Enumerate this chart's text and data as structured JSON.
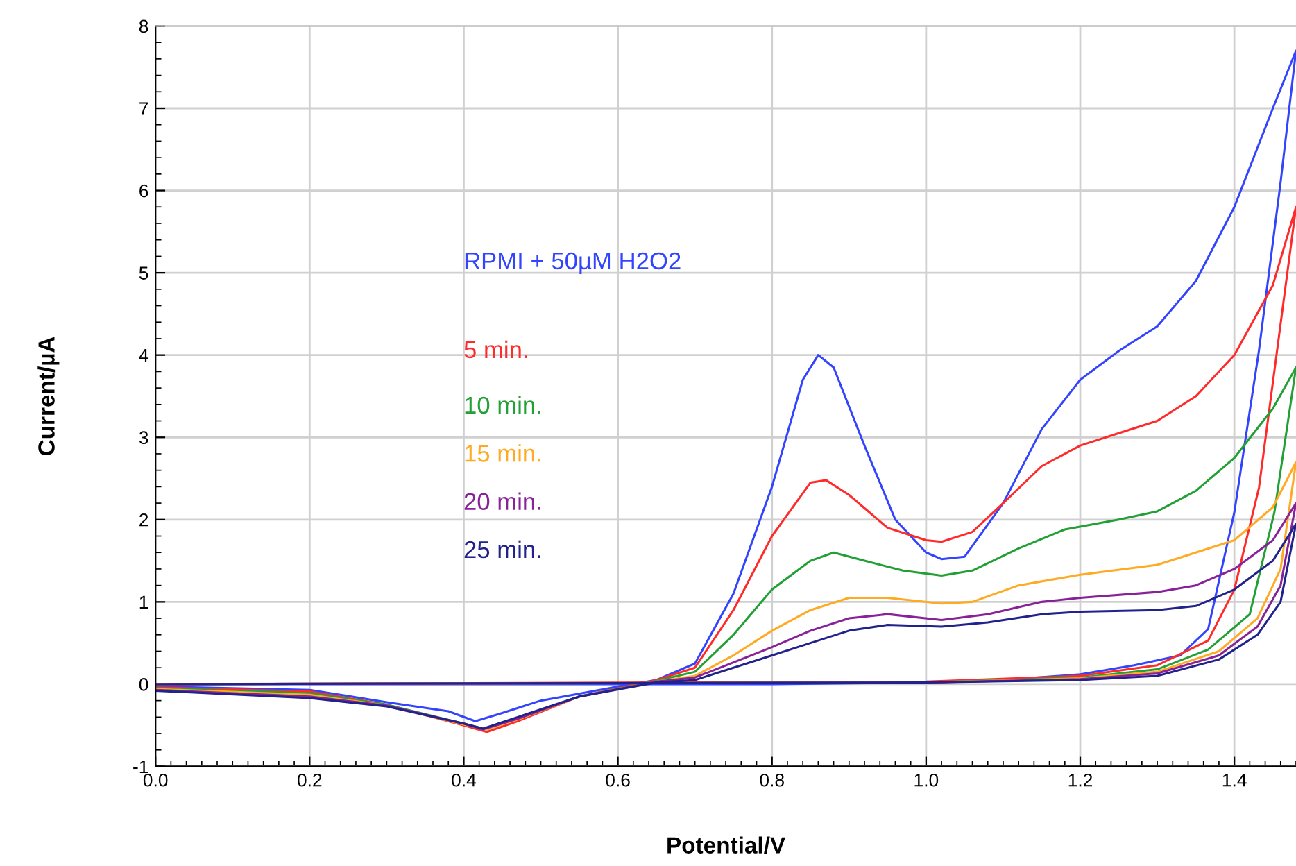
{
  "chart_data": {
    "type": "line",
    "xlabel": "Potential/V",
    "ylabel": "Current/µA",
    "xlim": [
      0,
      1.48
    ],
    "ylim": [
      -1,
      8
    ],
    "xticks": [
      {
        "value": 0,
        "label": "0.0"
      },
      {
        "value": 0.2,
        "label": "0.2"
      },
      {
        "value": 0.4,
        "label": "0.4"
      },
      {
        "value": 0.6,
        "label": "0.6"
      },
      {
        "value": 0.8,
        "label": "0.8"
      },
      {
        "value": 1.0,
        "label": "1.0"
      },
      {
        "value": 1.2,
        "label": "1.2"
      },
      {
        "value": 1.4,
        "label": "1.4"
      }
    ],
    "yticks": [
      -1,
      0,
      1,
      2,
      3,
      4,
      5,
      6,
      7,
      8
    ],
    "grid": true,
    "legend": false,
    "marker": "none",
    "line_style": "solid",
    "series": [
      {
        "name": "RPMI + 50µM H2O2",
        "color": "#3344ff",
        "x": [
          0,
          0.2,
          0.3,
          0.38,
          0.415,
          0.45,
          0.5,
          0.6,
          0.65,
          0.7,
          0.75,
          0.8,
          0.84,
          0.86,
          0.88,
          0.92,
          0.96,
          1.0,
          1.02,
          1.05,
          1.1,
          1.15,
          1.2,
          1.25,
          1.3,
          1.35,
          1.4,
          1.45,
          1.48,
          1.46,
          1.432,
          1.4,
          1.366,
          1.33,
          1.27,
          1.2,
          1.1,
          1.0,
          0.8,
          0.0
        ],
        "values": [
          -0.03,
          -0.07,
          -0.22,
          -0.33,
          -0.45,
          -0.35,
          -0.2,
          -0.03,
          0.05,
          0.25,
          1.1,
          2.4,
          3.7,
          4.0,
          3.85,
          2.9,
          2.0,
          1.6,
          1.52,
          1.55,
          2.2,
          3.1,
          3.7,
          4.05,
          4.35,
          4.9,
          5.8,
          7.0,
          7.7,
          6.1,
          4.06,
          2.09,
          0.67,
          0.35,
          0.23,
          0.12,
          0.05,
          0.02,
          0.0,
          0.0
        ]
      },
      {
        "name": "5 min.",
        "color": "#ff2a2a",
        "x": [
          0,
          0.2,
          0.3,
          0.4,
          0.43,
          0.47,
          0.55,
          0.65,
          0.7,
          0.75,
          0.8,
          0.85,
          0.87,
          0.9,
          0.95,
          1.0,
          1.02,
          1.06,
          1.1,
          1.15,
          1.2,
          1.25,
          1.3,
          1.35,
          1.4,
          1.45,
          1.48,
          1.432,
          1.4,
          1.366,
          1.3,
          1.2,
          1.0,
          0.0
        ],
        "values": [
          -0.04,
          -0.09,
          -0.25,
          -0.5,
          -0.58,
          -0.45,
          -0.15,
          0.05,
          0.2,
          0.9,
          1.8,
          2.45,
          2.48,
          2.3,
          1.9,
          1.75,
          1.73,
          1.85,
          2.2,
          2.65,
          2.9,
          3.05,
          3.2,
          3.5,
          4.0,
          4.85,
          5.8,
          2.39,
          1.15,
          0.53,
          0.23,
          0.1,
          0.03,
          0.0
        ]
      },
      {
        "name": "10 min.",
        "color": "#22a035",
        "x": [
          0,
          0.2,
          0.3,
          0.4,
          0.43,
          0.47,
          0.55,
          0.65,
          0.7,
          0.75,
          0.8,
          0.85,
          0.88,
          0.92,
          0.97,
          1.02,
          1.06,
          1.12,
          1.18,
          1.25,
          1.3,
          1.35,
          1.4,
          1.45,
          1.48,
          1.452,
          1.42,
          1.366,
          1.3,
          1.2,
          1.0,
          0.0
        ],
        "values": [
          -0.05,
          -0.11,
          -0.25,
          -0.48,
          -0.55,
          -0.42,
          -0.15,
          0.04,
          0.15,
          0.6,
          1.15,
          1.5,
          1.6,
          1.5,
          1.38,
          1.32,
          1.38,
          1.65,
          1.88,
          2.0,
          2.1,
          2.35,
          2.75,
          3.35,
          3.85,
          2.09,
          0.85,
          0.42,
          0.18,
          0.08,
          0.02,
          0.0
        ]
      },
      {
        "name": "15 min.",
        "color": "#ffaa22",
        "x": [
          0,
          0.2,
          0.3,
          0.4,
          0.43,
          0.47,
          0.55,
          0.65,
          0.7,
          0.75,
          0.8,
          0.85,
          0.9,
          0.95,
          1.02,
          1.06,
          1.12,
          1.2,
          1.3,
          1.35,
          1.4,
          1.45,
          1.48,
          1.46,
          1.43,
          1.38,
          1.3,
          1.2,
          1.0,
          0.0
        ],
        "values": [
          -0.06,
          -0.13,
          -0.26,
          -0.49,
          -0.55,
          -0.43,
          -0.15,
          0.03,
          0.1,
          0.35,
          0.65,
          0.9,
          1.05,
          1.05,
          0.98,
          1.0,
          1.2,
          1.33,
          1.45,
          1.6,
          1.75,
          2.15,
          2.7,
          1.4,
          0.8,
          0.4,
          0.15,
          0.07,
          0.02,
          0.0
        ]
      },
      {
        "name": "20 min.",
        "color": "#882299",
        "x": [
          0,
          0.2,
          0.3,
          0.4,
          0.425,
          0.47,
          0.55,
          0.65,
          0.7,
          0.8,
          0.85,
          0.9,
          0.95,
          1.02,
          1.08,
          1.15,
          1.2,
          1.3,
          1.35,
          1.4,
          1.45,
          1.48,
          1.46,
          1.43,
          1.38,
          1.3,
          1.2,
          1.0,
          0.0
        ],
        "values": [
          -0.07,
          -0.15,
          -0.26,
          -0.48,
          -0.55,
          -0.42,
          -0.15,
          0.03,
          0.08,
          0.45,
          0.65,
          0.8,
          0.85,
          0.78,
          0.85,
          1.0,
          1.05,
          1.12,
          1.2,
          1.4,
          1.75,
          2.2,
          1.2,
          0.7,
          0.35,
          0.13,
          0.06,
          0.02,
          0.0
        ]
      },
      {
        "name": "25 min.",
        "color": "#22228c",
        "x": [
          0,
          0.2,
          0.3,
          0.4,
          0.425,
          0.47,
          0.55,
          0.65,
          0.7,
          0.8,
          0.85,
          0.9,
          0.95,
          1.02,
          1.08,
          1.15,
          1.2,
          1.3,
          1.35,
          1.4,
          1.45,
          1.48,
          1.46,
          1.43,
          1.38,
          1.3,
          1.2,
          1.0,
          0.0
        ],
        "values": [
          -0.08,
          -0.17,
          -0.27,
          -0.48,
          -0.54,
          -0.4,
          -0.15,
          0.02,
          0.05,
          0.35,
          0.5,
          0.65,
          0.72,
          0.7,
          0.75,
          0.85,
          0.88,
          0.9,
          0.95,
          1.15,
          1.5,
          1.95,
          1.0,
          0.6,
          0.3,
          0.1,
          0.05,
          0.02,
          0.0
        ]
      }
    ]
  }
}
